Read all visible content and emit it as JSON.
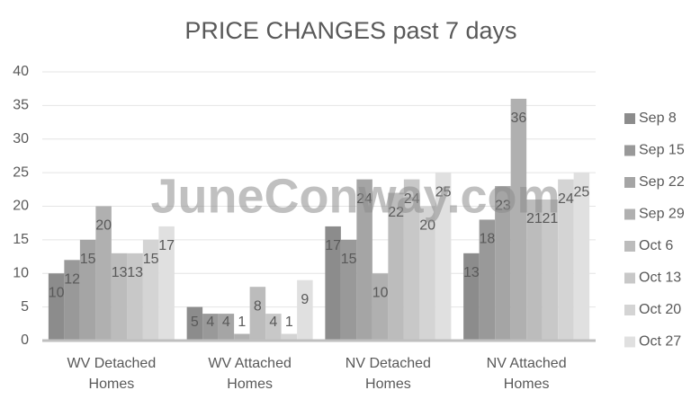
{
  "chart_data": {
    "type": "bar",
    "title": "PRICE CHANGES past 7 days",
    "watermark": "JuneConway.com",
    "categories": [
      "WV Detached Homes",
      "WV Attached Homes",
      "NV Detached Homes",
      "NV Attached Homes"
    ],
    "series": [
      {
        "name": "Sep 8",
        "color": "#8c8c8c",
        "values": [
          10,
          5,
          17,
          13
        ]
      },
      {
        "name": "Sep 15",
        "color": "#999999",
        "values": [
          12,
          4,
          15,
          18
        ]
      },
      {
        "name": "Sep 22",
        "color": "#a5a5a5",
        "values": [
          15,
          4,
          24,
          23
        ]
      },
      {
        "name": "Sep 29",
        "color": "#b0b0b0",
        "values": [
          20,
          1,
          10,
          36
        ]
      },
      {
        "name": "Oct 6",
        "color": "#bcbcbc",
        "values": [
          13,
          8,
          22,
          21
        ]
      },
      {
        "name": "Oct 13",
        "color": "#c8c8c8",
        "values": [
          13,
          4,
          24,
          21
        ]
      },
      {
        "name": "Oct 20",
        "color": "#d4d4d4",
        "values": [
          15,
          1,
          20,
          24
        ]
      },
      {
        "name": "Oct 27",
        "color": "#e0e0e0",
        "values": [
          17,
          9,
          25,
          25
        ]
      }
    ],
    "ylim": [
      0,
      40
    ],
    "yticks": [
      0,
      5,
      10,
      15,
      20,
      25,
      30,
      35,
      40
    ],
    "grid": true,
    "legend": "right"
  }
}
